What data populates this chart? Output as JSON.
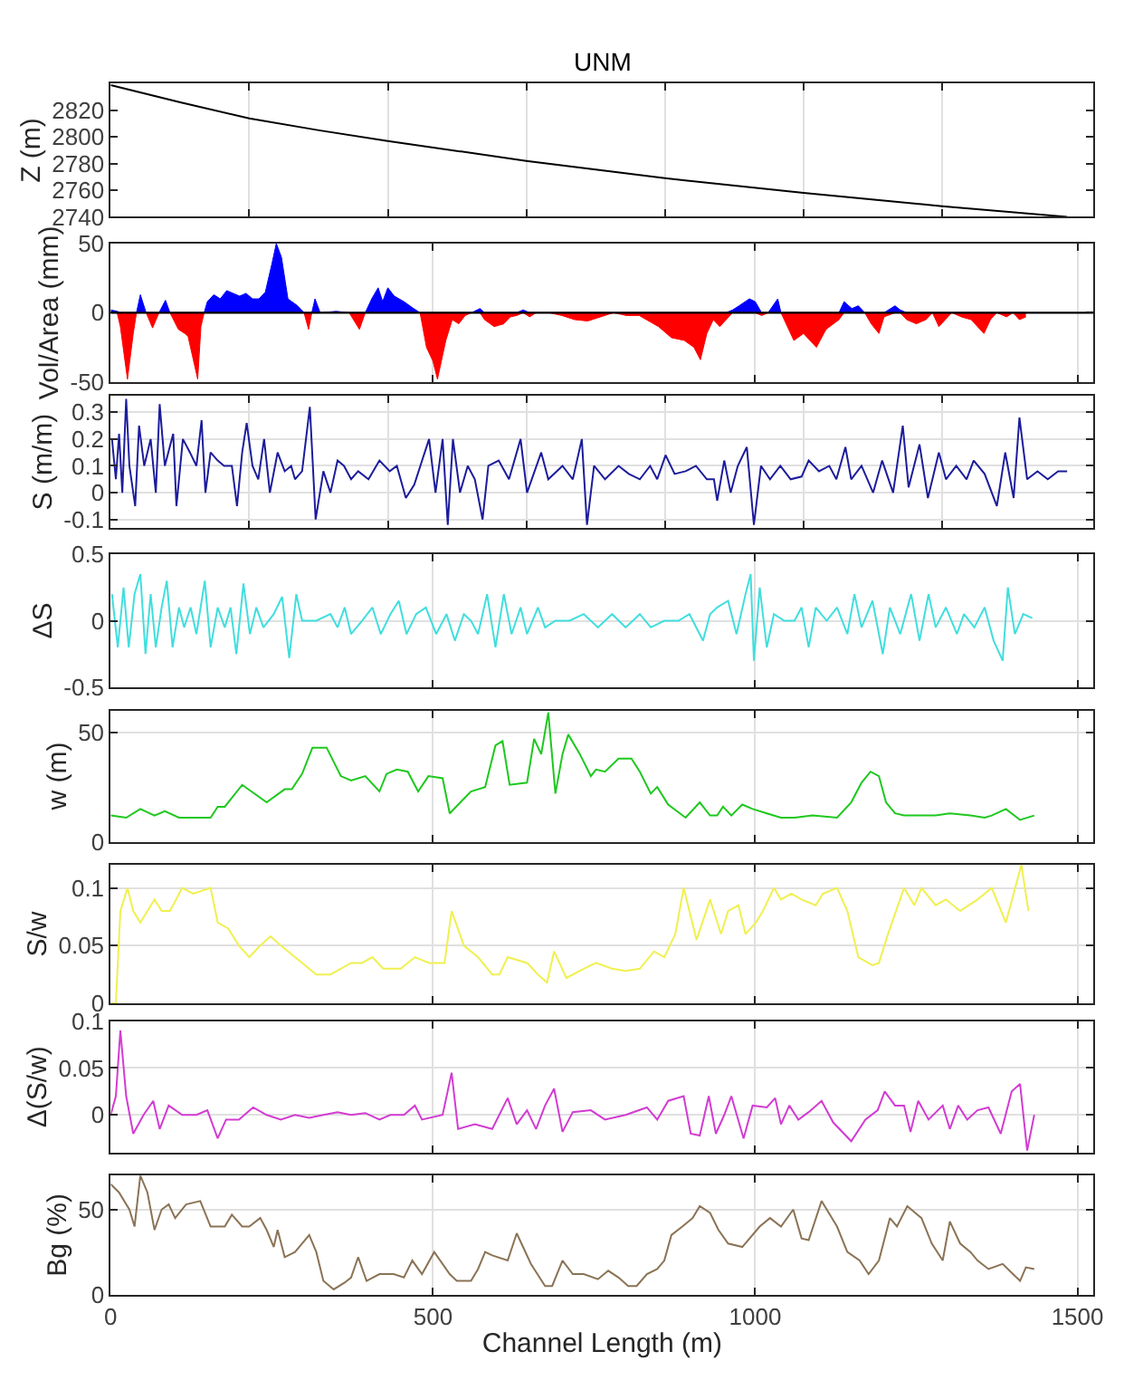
{
  "chart_data": [
    {
      "type": "line",
      "title": "UNM",
      "ylabel": "Z (m)",
      "xlim": [
        0,
        1525
      ],
      "xticks": [
        {
          "value": 215,
          "label": null
        },
        {
          "value": 430,
          "label": null
        },
        {
          "value": 645,
          "label": null
        },
        {
          "value": 860,
          "label": null
        },
        {
          "value": 1075,
          "label": null
        },
        {
          "value": 1290,
          "label": null
        }
      ],
      "ylim": [
        2740,
        2840
      ],
      "yticks": [
        2740,
        2760,
        2780,
        2800,
        2820
      ],
      "grid": "x",
      "tick_labels": "y",
      "series": [
        {
          "color": "#000000",
          "x": [
            0,
            108,
            215,
            323,
            430,
            645,
            860,
            1075,
            1290,
            1484
          ],
          "values": [
            2839,
            2826,
            2814,
            2805,
            2797,
            2782,
            2769,
            2758,
            2748,
            2740
          ]
        }
      ]
    },
    {
      "type": "area",
      "ylabel": "Vol/Area (mm)",
      "xlim": [
        0,
        1525
      ],
      "xticks": [
        0,
        500,
        1000,
        1500
      ],
      "ylim": [
        -50,
        50
      ],
      "yticks": [
        -50,
        0,
        50
      ],
      "grid": "x",
      "tick_labels": "y",
      "ref_lines": [
        {
          "axis": "y",
          "value": 0,
          "color": "#000000"
        }
      ],
      "x": [
        0,
        10,
        15,
        26,
        35,
        40,
        46,
        55,
        65,
        75,
        85,
        92,
        105,
        115,
        120,
        135,
        140,
        145,
        150,
        160,
        170,
        180,
        190,
        200,
        210,
        220,
        230,
        240,
        250,
        257,
        265,
        275,
        290,
        300,
        307,
        312,
        317,
        325,
        350,
        370,
        386,
        395,
        405,
        415,
        422,
        430,
        440,
        455,
        470,
        480,
        490,
        500,
        507,
        520,
        530,
        540,
        550,
        560,
        573,
        580,
        595,
        610,
        620,
        630,
        640,
        650,
        660,
        680,
        700,
        720,
        740,
        760,
        780,
        800,
        820,
        850,
        870,
        890,
        905,
        915,
        925,
        935,
        945,
        955,
        965,
        975,
        991,
        1000,
        1010,
        1020,
        1035,
        1040,
        1050,
        1060,
        1075,
        1095,
        1110,
        1130,
        1138,
        1150,
        1160,
        1170,
        1180,
        1192,
        1200,
        1217,
        1225,
        1235,
        1250,
        1265,
        1275,
        1285,
        1295,
        1305,
        1320,
        1335,
        1345,
        1355,
        1365,
        1375,
        1390,
        1400,
        1410,
        1420
      ],
      "series": [
        {
          "color": "#0000ff",
          "values": [
            2,
            1,
            0,
            0,
            0,
            0,
            13,
            0,
            0,
            0,
            9,
            0,
            0,
            0,
            0,
            0,
            0,
            0,
            8,
            13,
            10,
            16,
            14,
            12,
            14,
            10,
            10,
            15,
            35,
            50,
            40,
            10,
            5,
            0,
            0,
            0,
            10,
            0,
            1,
            0,
            0,
            0,
            10,
            18,
            8,
            18,
            12,
            8,
            3,
            0,
            0,
            0,
            0,
            0,
            0,
            0,
            0,
            0,
            3,
            0,
            0,
            0,
            0,
            0,
            2,
            0,
            0,
            0,
            0,
            0,
            0,
            0,
            0,
            0,
            0,
            0,
            0,
            0,
            0,
            0,
            0,
            0,
            0,
            0,
            2,
            5,
            10,
            8,
            0,
            0,
            10,
            0,
            0,
            0,
            0,
            0,
            0,
            0,
            8,
            3,
            5,
            0,
            0,
            0,
            0,
            5,
            2,
            0,
            0,
            0,
            0,
            0,
            0,
            0,
            0,
            0,
            0,
            0,
            0,
            0,
            0,
            0,
            0,
            0
          ]
        },
        {
          "color": "#ff0000",
          "values": [
            0,
            0,
            -10,
            -48,
            -15,
            0,
            0,
            0,
            -11,
            0,
            0,
            0,
            -12,
            -15,
            -17,
            -48,
            -10,
            0,
            0,
            0,
            0,
            0,
            0,
            0,
            0,
            0,
            0,
            0,
            0,
            0,
            0,
            0,
            0,
            0,
            -12,
            0,
            0,
            0,
            0,
            0,
            -12,
            0,
            0,
            0,
            0,
            0,
            0,
            0,
            0,
            0,
            -25,
            -35,
            -48,
            -20,
            -5,
            -8,
            -2,
            0,
            0,
            -5,
            -10,
            -8,
            -3,
            -2,
            0,
            -3,
            0,
            0,
            -2,
            -5,
            -6,
            -3,
            0,
            -2,
            -2,
            -10,
            -18,
            -20,
            -25,
            -34,
            -15,
            -5,
            -10,
            -5,
            0,
            0,
            0,
            0,
            -2,
            0,
            0,
            0,
            -10,
            -20,
            -15,
            -25,
            -12,
            -5,
            0,
            0,
            0,
            0,
            -8,
            -15,
            -3,
            0,
            0,
            -5,
            -8,
            -5,
            0,
            -10,
            -5,
            0,
            -3,
            -5,
            -10,
            -15,
            -5,
            0,
            -3,
            0,
            -5,
            -3
          ]
        }
      ]
    },
    {
      "type": "line",
      "ylabel": "S (m/m)",
      "xlim": [
        0,
        1525
      ],
      "xticks": [
        {
          "value": 215,
          "label": null
        },
        {
          "value": 430,
          "label": null
        },
        {
          "value": 645,
          "label": null
        },
        {
          "value": 860,
          "label": null
        },
        {
          "value": 1075,
          "label": null
        },
        {
          "value": 1290,
          "label": null
        }
      ],
      "ylim": [
        -0.13,
        0.36
      ],
      "yticks": [
        -0.1,
        0,
        0.1,
        0.2,
        0.3
      ],
      "grid": true,
      "tick_labels": "y",
      "series": [
        {
          "color": "#1c1c9c",
          "x": [
            2,
            8,
            13,
            18,
            24,
            29,
            38,
            44,
            52,
            62,
            70,
            76,
            84,
            97,
            102,
            112,
            123,
            133,
            141,
            147,
            155,
            166,
            176,
            188,
            196,
            204,
            211,
            220,
            229,
            238,
            247,
            259,
            270,
            280,
            286,
            297,
            309,
            318,
            330,
            341,
            352,
            362,
            373,
            384,
            400,
            417,
            433,
            444,
            458,
            471,
            494,
            504,
            515,
            523,
            531,
            542,
            554,
            565,
            577,
            586,
            602,
            618,
            636,
            646,
            668,
            679,
            701,
            717,
            731,
            739,
            750,
            767,
            788,
            804,
            821,
            837,
            848,
            861,
            875,
            892,
            908,
            925,
            936,
            941,
            952,
            962,
            973,
            987,
            998,
            1009,
            1023,
            1039,
            1055,
            1072,
            1083,
            1099,
            1115,
            1126,
            1140,
            1149,
            1165,
            1183,
            1197,
            1214,
            1229,
            1238,
            1255,
            1268,
            1285,
            1296,
            1312,
            1328,
            1339,
            1356,
            1375,
            1388,
            1401,
            1410,
            1422,
            1438,
            1454,
            1470,
            1484
          ],
          "values": [
            0.2,
            0.05,
            0.22,
            0,
            0.35,
            0.1,
            -0.05,
            0.25,
            0.1,
            0.2,
            0,
            0.33,
            0.1,
            0.22,
            -0.05,
            0.2,
            0.15,
            0.1,
            0.27,
            0,
            0.15,
            0.12,
            0.1,
            0.1,
            -0.05,
            0.15,
            0.26,
            0.1,
            0.05,
            0.2,
            0,
            0.15,
            0.08,
            0.1,
            0.05,
            0.08,
            0.32,
            -0.1,
            0.08,
            0,
            0.12,
            0.1,
            0.05,
            0.08,
            0.05,
            0.12,
            0.08,
            0.1,
            -0.02,
            0.03,
            0.2,
            0,
            0.2,
            -0.12,
            0.2,
            0,
            0.1,
            0.05,
            -0.1,
            0.1,
            0.12,
            0.05,
            0.2,
            0,
            0.15,
            0.05,
            0.1,
            0.05,
            0.2,
            -0.12,
            0.1,
            0.05,
            0.1,
            0.07,
            0.05,
            0.1,
            0.05,
            0.14,
            0.07,
            0.08,
            0.1,
            0.05,
            0.05,
            -0.03,
            0.12,
            0,
            0.1,
            0.17,
            -0.12,
            0.1,
            0.05,
            0.1,
            0.05,
            0.06,
            0.12,
            0.08,
            0.1,
            0.05,
            0.17,
            0.05,
            0.1,
            0,
            0.12,
            0,
            0.25,
            0.02,
            0.18,
            -0.02,
            0.15,
            0.05,
            0.1,
            0.05,
            0.12,
            0.07,
            -0.05,
            0.15,
            -0.02,
            0.28,
            0.05,
            0.08,
            0.05,
            0.08,
            0.08
          ]
        }
      ]
    },
    {
      "type": "line",
      "ylabel": "ΔS",
      "xlim": [
        0,
        1525
      ],
      "xticks": [
        0,
        500,
        1000,
        1500
      ],
      "ylim": [
        -0.5,
        0.5
      ],
      "yticks": [
        -0.5,
        0,
        0.5
      ],
      "grid": true,
      "tick_labels": "y",
      "series": [
        {
          "color": "#40dede",
          "x": [
            2,
            11,
            20,
            28,
            37,
            46,
            54,
            62,
            70,
            79,
            87,
            96,
            106,
            114,
            124,
            133,
            146,
            155,
            166,
            177,
            186,
            195,
            206,
            216,
            226,
            237,
            253,
            266,
            277,
            288,
            297,
            319,
            341,
            352,
            363,
            373,
            390,
            406,
            419,
            434,
            447,
            459,
            474,
            489,
            505,
            521,
            534,
            548,
            559,
            570,
            584,
            597,
            610,
            622,
            636,
            646,
            663,
            674,
            690,
            712,
            734,
            756,
            778,
            799,
            821,
            838,
            859,
            881,
            898,
            919,
            930,
            941,
            958,
            971,
            985,
            993,
            998,
            1007,
            1018,
            1029,
            1045,
            1061,
            1072,
            1083,
            1094,
            1111,
            1127,
            1143,
            1154,
            1165,
            1182,
            1198,
            1209,
            1225,
            1242,
            1255,
            1269,
            1280,
            1296,
            1313,
            1324,
            1340,
            1356,
            1370,
            1384,
            1392,
            1403,
            1416,
            1430
          ],
          "values": [
            0.2,
            -0.2,
            0.25,
            -0.2,
            0.2,
            0.35,
            -0.25,
            0.2,
            -0.2,
            0.1,
            0.3,
            -0.2,
            0.1,
            -0.05,
            0.1,
            -0.1,
            0.3,
            -0.2,
            0.1,
            -0.05,
            0.1,
            -0.25,
            0.28,
            -0.1,
            0.1,
            -0.05,
            0.05,
            0.18,
            -0.28,
            0.2,
            0,
            0,
            0.05,
            -0.05,
            0.1,
            -0.1,
            0,
            0.1,
            -0.1,
            0.05,
            0.15,
            -0.1,
            0.05,
            0.1,
            -0.1,
            0.05,
            -0.15,
            0.05,
            0,
            -0.1,
            0.2,
            -0.2,
            0.2,
            -0.1,
            0.1,
            -0.1,
            0.1,
            -0.05,
            0,
            0,
            0.05,
            -0.05,
            0.05,
            -0.05,
            0.05,
            -0.05,
            0,
            0,
            0.05,
            -0.15,
            0.05,
            0.1,
            0.15,
            -0.1,
            0.2,
            0.35,
            -0.3,
            0.25,
            -0.2,
            0.05,
            0,
            0,
            0.1,
            -0.2,
            0.1,
            0,
            0.1,
            -0.1,
            0.2,
            -0.05,
            0.15,
            -0.25,
            0.1,
            -0.1,
            0.2,
            -0.15,
            0.2,
            -0.05,
            0.1,
            -0.1,
            0.05,
            -0.05,
            0.1,
            -0.15,
            -0.3,
            0.25,
            -0.1,
            0.05,
            0.02
          ]
        }
      ]
    },
    {
      "type": "line",
      "ylabel": "w (m)",
      "xlim": [
        0,
        1525
      ],
      "xticks": [
        0,
        500,
        1000,
        1500
      ],
      "ylim": [
        0,
        60
      ],
      "yticks": [
        0,
        50
      ],
      "grid": true,
      "tick_labels": "y",
      "series": [
        {
          "color": "#1ec81e",
          "x": [
            0,
            24,
            46,
            68,
            84,
            106,
            155,
            166,
            177,
            204,
            242,
            270,
            281,
            297,
            313,
            335,
            357,
            373,
            395,
            417,
            428,
            444,
            461,
            477,
            493,
            515,
            526,
            559,
            581,
            597,
            608,
            619,
            646,
            657,
            668,
            679,
            690,
            701,
            710,
            728,
            745,
            753,
            767,
            788,
            808,
            821,
            838,
            848,
            865,
            892,
            914,
            930,
            941,
            950,
            963,
            980,
            996,
            1018,
            1040,
            1061,
            1089,
            1127,
            1149,
            1165,
            1179,
            1192,
            1203,
            1217,
            1231,
            1258,
            1280,
            1302,
            1334,
            1356,
            1367,
            1389,
            1411,
            1433
          ],
          "values": [
            12,
            11,
            15,
            12,
            14,
            11,
            11,
            16,
            16,
            26,
            18,
            24,
            24,
            31,
            43,
            43,
            30,
            28,
            30,
            23,
            31,
            33,
            32,
            23,
            30,
            29,
            13,
            23,
            25,
            44,
            46,
            26,
            27,
            47,
            40,
            59,
            22,
            40,
            49,
            40,
            30,
            33,
            32,
            38,
            38,
            32,
            22,
            25,
            17,
            11,
            18,
            12,
            12,
            16,
            12,
            17,
            15,
            13,
            11,
            11,
            12,
            11,
            18,
            27,
            32,
            30,
            18,
            13,
            12,
            12,
            12,
            13,
            12,
            11,
            12,
            15,
            10,
            12
          ]
        }
      ]
    },
    {
      "type": "line",
      "ylabel": "S/w",
      "xlim": [
        0,
        1525
      ],
      "xticks": [
        0,
        500,
        1000,
        1500
      ],
      "ylim": [
        0,
        0.12
      ],
      "yticks": [
        0,
        0.05,
        0.1
      ],
      "grid": true,
      "tick_labels": "y",
      "series": [
        {
          "color": "#f0f050",
          "x": [
            0,
            8,
            15,
            26,
            35,
            46,
            68,
            79,
            92,
            111,
            128,
            155,
            166,
            182,
            199,
            215,
            232,
            248,
            264,
            286,
            319,
            341,
            373,
            390,
            406,
            423,
            450,
            472,
            494,
            518,
            529,
            548,
            570,
            592,
            603,
            616,
            646,
            663,
            677,
            688,
            707,
            734,
            753,
            778,
            799,
            821,
            843,
            859,
            876,
            889,
            909,
            930,
            947,
            958,
            974,
            985,
            1001,
            1012,
            1029,
            1040,
            1056,
            1072,
            1094,
            1105,
            1127,
            1143,
            1160,
            1182,
            1192,
            1206,
            1231,
            1247,
            1258,
            1280,
            1296,
            1318,
            1345,
            1367,
            1389,
            1413,
            1424
          ],
          "values": [
            0,
            0,
            0.08,
            0.1,
            0.08,
            0.07,
            0.09,
            0.08,
            0.08,
            0.1,
            0.095,
            0.1,
            0.07,
            0.065,
            0.05,
            0.04,
            0.05,
            0.058,
            0.05,
            0.04,
            0.025,
            0.025,
            0.035,
            0.035,
            0.04,
            0.03,
            0.03,
            0.04,
            0.035,
            0.035,
            0.08,
            0.05,
            0.04,
            0.025,
            0.025,
            0.04,
            0.035,
            0.025,
            0.018,
            0.045,
            0.022,
            0.03,
            0.035,
            0.03,
            0.028,
            0.03,
            0.045,
            0.04,
            0.06,
            0.1,
            0.055,
            0.09,
            0.06,
            0.08,
            0.085,
            0.06,
            0.07,
            0.08,
            0.1,
            0.09,
            0.095,
            0.09,
            0.085,
            0.095,
            0.1,
            0.08,
            0.04,
            0.033,
            0.035,
            0.06,
            0.1,
            0.085,
            0.1,
            0.085,
            0.09,
            0.08,
            0.09,
            0.1,
            0.07,
            0.12,
            0.08
          ]
        }
      ]
    },
    {
      "type": "line",
      "ylabel": "Δ(S/w)",
      "xlim": [
        0,
        1525
      ],
      "xticks": [
        0,
        500,
        1000,
        1500
      ],
      "ylim": [
        -0.04,
        0.1
      ],
      "yticks": [
        0,
        0.05,
        0.1
      ],
      "grid": true,
      "tick_labels": "y",
      "series": [
        {
          "color": "#d23cd2",
          "x": [
            0,
            8,
            15,
            24,
            35,
            51,
            66,
            76,
            90,
            111,
            133,
            150,
            166,
            179,
            199,
            221,
            242,
            264,
            286,
            308,
            330,
            352,
            373,
            395,
            417,
            434,
            455,
            472,
            483,
            515,
            529,
            539,
            565,
            592,
            616,
            630,
            646,
            660,
            674,
            688,
            701,
            717,
            745,
            767,
            799,
            832,
            848,
            865,
            889,
            900,
            914,
            928,
            939,
            952,
            963,
            982,
            996,
            1018,
            1031,
            1040,
            1053,
            1067,
            1083,
            1103,
            1121,
            1149,
            1171,
            1190,
            1201,
            1217,
            1231,
            1241,
            1253,
            1269,
            1291,
            1302,
            1315,
            1329,
            1345,
            1362,
            1381,
            1398,
            1411,
            1422,
            1433
          ],
          "values": [
            0,
            0.02,
            0.09,
            0.02,
            -0.02,
            0,
            0.015,
            -0.015,
            0.01,
            0,
            0,
            0.005,
            -0.025,
            -0.005,
            -0.005,
            0.008,
            0,
            -0.005,
            0,
            -0.003,
            0,
            0.003,
            0,
            0.002,
            -0.005,
            0,
            0,
            0.01,
            -0.005,
            0,
            0.045,
            -0.015,
            -0.01,
            -0.015,
            0.018,
            -0.01,
            0.005,
            -0.015,
            0.01,
            0.028,
            -0.018,
            0.003,
            0.005,
            -0.005,
            0,
            0.008,
            -0.005,
            0.015,
            0.02,
            -0.02,
            -0.022,
            0.02,
            -0.02,
            0,
            0.02,
            -0.025,
            0.01,
            0.008,
            0.018,
            -0.01,
            0.01,
            -0.005,
            0.003,
            0.015,
            -0.008,
            -0.028,
            -0.005,
            0.005,
            0.025,
            0.01,
            0.01,
            -0.018,
            0.015,
            -0.005,
            0.01,
            -0.015,
            0.01,
            -0.005,
            0.005,
            0.008,
            -0.02,
            0.025,
            0.033,
            -0.038,
            0
          ]
        }
      ]
    },
    {
      "type": "line",
      "ylabel": "Bg (%)",
      "xlabel": "Channel Length (m)",
      "xlim": [
        0,
        1525
      ],
      "xticks": [
        0,
        500,
        1000,
        1500
      ],
      "ylim": [
        0,
        70
      ],
      "yticks": [
        0,
        50
      ],
      "grid": true,
      "series": [
        {
          "color": "#8b7355",
          "x": [
            0,
            13,
            29,
            37,
            46,
            57,
            68,
            79,
            90,
            100,
            117,
            139,
            155,
            177,
            188,
            204,
            215,
            232,
            242,
            253,
            259,
            270,
            286,
            308,
            319,
            330,
            346,
            363,
            373,
            384,
            397,
            417,
            439,
            455,
            468,
            483,
            502,
            526,
            537,
            559,
            570,
            581,
            592,
            616,
            630,
            652,
            674,
            685,
            701,
            717,
            734,
            756,
            772,
            788,
            803,
            816,
            832,
            848,
            859,
            870,
            887,
            903,
            914,
            930,
            943,
            958,
            980,
            1007,
            1023,
            1040,
            1059,
            1072,
            1083,
            1103,
            1127,
            1143,
            1162,
            1176,
            1192,
            1209,
            1220,
            1236,
            1258,
            1274,
            1291,
            1302,
            1318,
            1334,
            1345,
            1362,
            1384,
            1400,
            1411,
            1420,
            1433
          ],
          "values": [
            65,
            60,
            50,
            40,
            70,
            60,
            38,
            50,
            53,
            45,
            53,
            55,
            40,
            40,
            47,
            40,
            40,
            45,
            38,
            28,
            38,
            22,
            25,
            35,
            25,
            8,
            3,
            7,
            10,
            22,
            8,
            12,
            12,
            10,
            20,
            12,
            25,
            12,
            8,
            8,
            15,
            25,
            23,
            20,
            36,
            18,
            5,
            5,
            20,
            12,
            12,
            9,
            14,
            10,
            5,
            5,
            12,
            15,
            20,
            35,
            40,
            45,
            52,
            48,
            38,
            30,
            28,
            40,
            45,
            40,
            50,
            33,
            32,
            55,
            40,
            25,
            20,
            12,
            20,
            45,
            40,
            52,
            45,
            30,
            20,
            43,
            30,
            25,
            20,
            15,
            18,
            12,
            8,
            16,
            15
          ]
        }
      ]
    }
  ]
}
